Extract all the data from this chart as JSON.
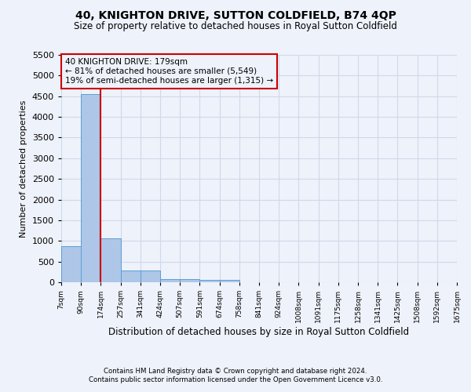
{
  "title": "40, KNIGHTON DRIVE, SUTTON COLDFIELD, B74 4QP",
  "subtitle": "Size of property relative to detached houses in Royal Sutton Coldfield",
  "xlabel": "Distribution of detached houses by size in Royal Sutton Coldfield",
  "ylabel": "Number of detached properties",
  "footnote1": "Contains HM Land Registry data © Crown copyright and database right 2024.",
  "footnote2": "Contains public sector information licensed under the Open Government Licence v3.0.",
  "annotation_title": "40 KNIGHTON DRIVE: 179sqm",
  "annotation_line2": "← 81% of detached houses are smaller (5,549)",
  "annotation_line3": "19% of semi-detached houses are larger (1,315) →",
  "bin_edges": [
    7,
    90,
    174,
    257,
    341,
    424,
    507,
    591,
    674,
    758,
    841,
    924,
    1008,
    1091,
    1175,
    1258,
    1341,
    1425,
    1508,
    1592,
    1675
  ],
  "bin_counts": [
    870,
    4550,
    1060,
    290,
    285,
    75,
    70,
    55,
    55,
    0,
    0,
    0,
    0,
    0,
    0,
    0,
    0,
    0,
    0,
    0
  ],
  "bar_color": "#aec6e8",
  "bar_edge_color": "#5a9fd4",
  "red_line_x": 174,
  "red_line_color": "#cc0000",
  "annotation_box_color": "#cc0000",
  "grid_color": "#d0d8e8",
  "background_color": "#eef2fa",
  "ylim": [
    0,
    5500
  ],
  "yticks": [
    0,
    500,
    1000,
    1500,
    2000,
    2500,
    3000,
    3500,
    4000,
    4500,
    5000,
    5500
  ]
}
